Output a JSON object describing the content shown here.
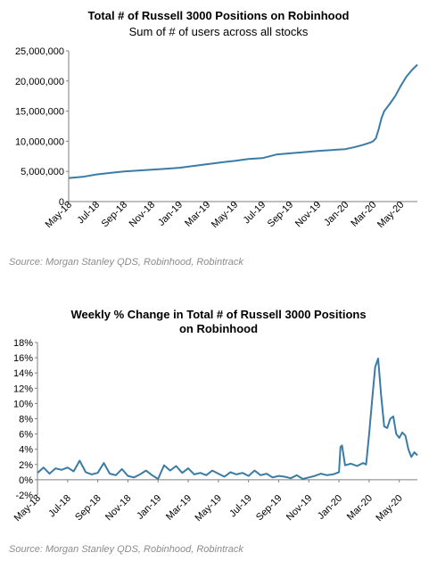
{
  "colors": {
    "line": "#3a7ca5",
    "axis": "#7f7f7f",
    "grid": "#d9d9d9"
  },
  "chart_data": [
    {
      "type": "line",
      "title": "Total # of Russell 3000 Positions on Robinhood",
      "subtitle": "Sum of # of users across all stocks",
      "ylim": [
        0,
        25000000
      ],
      "yticks": [
        "0",
        "5,000,000",
        "10,000,000",
        "15,000,000",
        "20,000,000",
        "25,000,000"
      ],
      "xticks": [
        "May-18",
        "Jul-18",
        "Sep-18",
        "Nov-18",
        "Jan-19",
        "Mar-19",
        "May-19",
        "Jul-19",
        "Sep-19",
        "Nov-19",
        "Jan-20",
        "Mar-20",
        "May-20"
      ],
      "grid": false,
      "series": [
        {
          "x": [
            0,
            0.5,
            1,
            1.5,
            2,
            2.5,
            3,
            3.5,
            4,
            4.5,
            5,
            5.5,
            6,
            6.5,
            7,
            7.5,
            8,
            8.5,
            9,
            9.5,
            10,
            10.3,
            10.6,
            10.9,
            11.0,
            11.1,
            11.2,
            11.3,
            11.4,
            11.6,
            11.8,
            12.0,
            12.2,
            12.4,
            12.6
          ],
          "y": [
            3900000,
            4100000,
            4500000,
            4750000,
            5000000,
            5150000,
            5300000,
            5450000,
            5600000,
            5900000,
            6200000,
            6500000,
            6750000,
            7050000,
            7200000,
            7800000,
            8000000,
            8200000,
            8400000,
            8550000,
            8700000,
            9000000,
            9350000,
            9800000,
            10000000,
            10500000,
            12000000,
            13800000,
            15000000,
            16200000,
            17500000,
            19200000,
            20700000,
            21800000,
            22700000
          ]
        }
      ],
      "source": "Source: Morgan Stanley QDS, Robinhood, Robintrack"
    },
    {
      "type": "line",
      "title": "Weekly % Change in Total # of Russell 3000 Positions",
      "title_line2": "on Robinhood",
      "ylim": [
        -2,
        18
      ],
      "yticks": [
        "-2%",
        "0%",
        "2%",
        "4%",
        "6%",
        "8%",
        "10%",
        "12%",
        "14%",
        "16%",
        "18%"
      ],
      "xticks": [
        "May-18",
        "Jul-18",
        "Sep-18",
        "Nov-18",
        "Jan-19",
        "Mar-19",
        "May-19",
        "Jul-19",
        "Sep-19",
        "Nov-19",
        "Jan-20",
        "Mar-20",
        "May-20"
      ],
      "grid": false,
      "series": [
        {
          "x": [
            0,
            0.2,
            0.4,
            0.6,
            0.8,
            1.0,
            1.2,
            1.4,
            1.6,
            1.8,
            2.0,
            2.2,
            2.4,
            2.6,
            2.8,
            3.0,
            3.2,
            3.4,
            3.6,
            3.8,
            4.0,
            4.2,
            4.4,
            4.6,
            4.8,
            5.0,
            5.2,
            5.4,
            5.6,
            5.8,
            6.0,
            6.2,
            6.4,
            6.6,
            6.8,
            7.0,
            7.2,
            7.4,
            7.6,
            7.8,
            8.0,
            8.2,
            8.4,
            8.6,
            8.8,
            9.0,
            9.2,
            9.4,
            9.6,
            9.8,
            10.0,
            10.05,
            10.1,
            10.2,
            10.4,
            10.6,
            10.8,
            10.9,
            11.0,
            11.1,
            11.2,
            11.3,
            11.4,
            11.5,
            11.6,
            11.7,
            11.8,
            11.9,
            12.0,
            12.1,
            12.2,
            12.3,
            12.4,
            12.5,
            12.6
          ],
          "y": [
            0.9,
            1.6,
            0.8,
            1.5,
            1.3,
            1.6,
            1.1,
            2.5,
            1.0,
            0.7,
            0.9,
            2.2,
            0.8,
            0.6,
            1.4,
            0.5,
            0.3,
            0.7,
            1.2,
            0.6,
            0.1,
            1.9,
            1.2,
            1.8,
            0.9,
            1.5,
            0.7,
            0.9,
            0.6,
            1.2,
            0.8,
            0.4,
            1.0,
            0.7,
            0.9,
            0.5,
            1.2,
            0.6,
            0.8,
            0.3,
            0.5,
            0.4,
            0.2,
            0.6,
            0.1,
            0.3,
            0.5,
            0.8,
            0.6,
            0.7,
            1.0,
            4.3,
            4.5,
            1.9,
            2.1,
            1.8,
            2.2,
            2.0,
            6.0,
            10.5,
            14.8,
            15.9,
            11.0,
            7.0,
            6.8,
            8.0,
            8.3,
            6.0,
            5.5,
            6.2,
            5.8,
            4.0,
            3.0,
            3.6,
            3.2
          ]
        }
      ],
      "source": "Source: Morgan Stanley QDS, Robinhood, Robintrack"
    }
  ]
}
